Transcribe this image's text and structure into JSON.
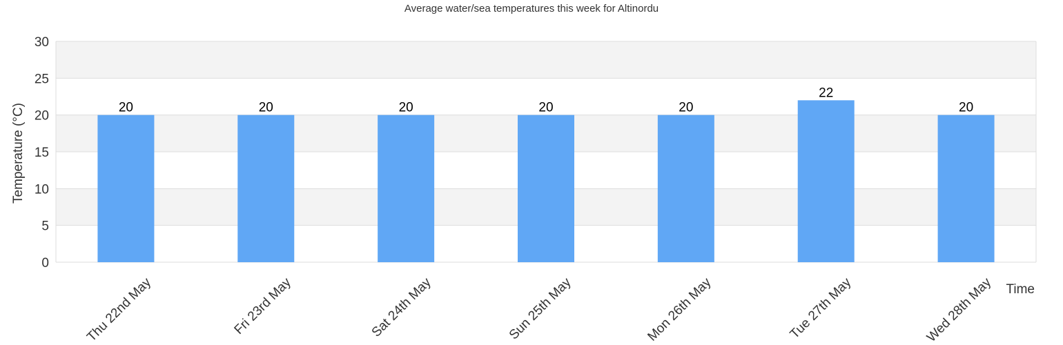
{
  "chart_data": {
    "type": "bar",
    "title": "Average water/sea temperatures this week for Altinordu",
    "xlabel": "Time",
    "ylabel": "Temperature (°C)",
    "categories": [
      "Thu 22nd May",
      "Fri 23rd May",
      "Sat 24th May",
      "Sun 25th May",
      "Mon 26th May",
      "Tue 27th May",
      "Wed 28th May"
    ],
    "values": [
      20,
      20,
      20,
      20,
      20,
      22,
      20
    ],
    "data_labels": [
      "20",
      "20",
      "20",
      "20",
      "20",
      "22",
      "20"
    ],
    "ylim": [
      0,
      30
    ],
    "yticks": [
      0,
      5,
      10,
      15,
      20,
      25,
      30
    ],
    "ytick_labels": [
      "0",
      "5",
      "10",
      "15",
      "20",
      "25",
      "30"
    ],
    "grid": true,
    "alternating_bands": true,
    "legend": "none",
    "colors": {
      "bar": "#60a7f5",
      "band": "#f3f3f3",
      "grid": "#dddddd",
      "text": "#333333"
    }
  }
}
